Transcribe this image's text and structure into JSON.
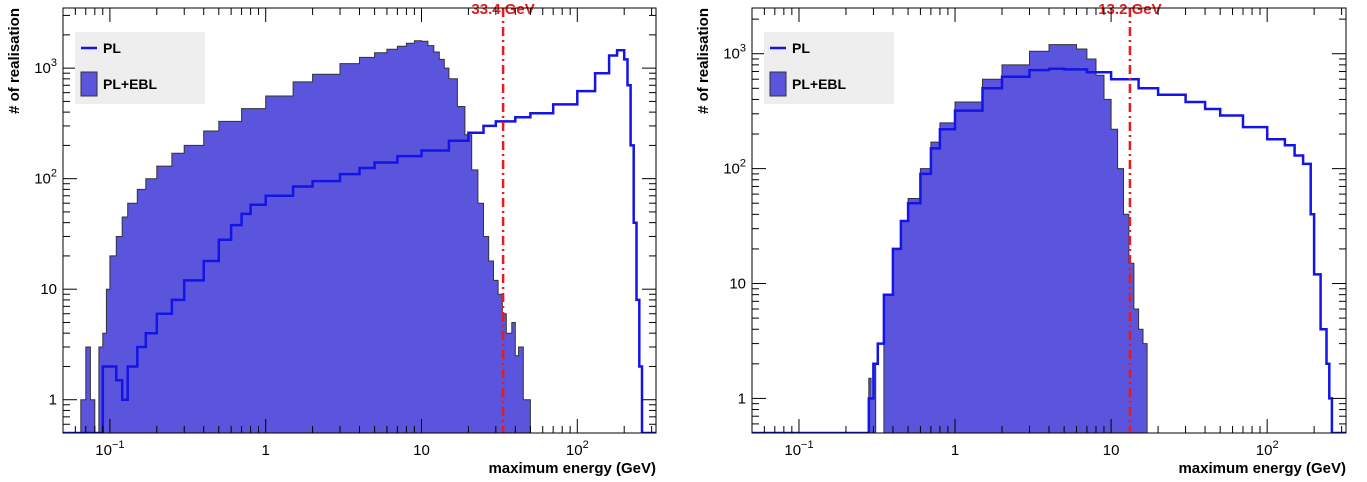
{
  "colors": {
    "pl_line": "#1414e6",
    "ebl_fill": "#5a55dc",
    "ebl_edge": "#333333",
    "cut_line": "#e61c1c",
    "legend_bg": "#eeeeee"
  },
  "chart_data": [
    {
      "type": "histogram",
      "title": "",
      "xlabel": "maximum energy (GeV)",
      "ylabel": "# of realisation",
      "xscale": "log",
      "yscale": "log",
      "xlim": [
        0.05,
        320
      ],
      "ylim": [
        0.5,
        3500
      ],
      "x_ticks": [
        {
          "value": 0.1,
          "label": "10",
          "exp": "−1"
        },
        {
          "value": 1,
          "label": "1",
          "exp": ""
        },
        {
          "value": 10,
          "label": "10",
          "exp": ""
        },
        {
          "value": 100,
          "label": "10",
          "exp": "2"
        }
      ],
      "y_ticks": [
        {
          "value": 1,
          "label": "1",
          "exp": ""
        },
        {
          "value": 10,
          "label": "10",
          "exp": ""
        },
        {
          "value": 100,
          "label": "10",
          "exp": "2"
        },
        {
          "value": 1000,
          "label": "10",
          "exp": "3"
        }
      ],
      "cut": {
        "value": 33.4,
        "label": "33.4 GeV"
      },
      "legend": {
        "position": "top-left",
        "entries": [
          {
            "label": "PL",
            "style": "line"
          },
          {
            "label": "PL+EBL",
            "style": "fill"
          }
        ]
      },
      "series": [
        {
          "name": "PL+EBL",
          "style": "fill",
          "points": [
            [
              0.05,
              0.5
            ],
            [
              0.06,
              0.5
            ],
            [
              0.065,
              1
            ],
            [
              0.07,
              3
            ],
            [
              0.075,
              1
            ],
            [
              0.08,
              0.5
            ],
            [
              0.085,
              3
            ],
            [
              0.09,
              4
            ],
            [
              0.095,
              10
            ],
            [
              0.1,
              20
            ],
            [
              0.11,
              30
            ],
            [
              0.12,
              45
            ],
            [
              0.13,
              60
            ],
            [
              0.15,
              80
            ],
            [
              0.17,
              100
            ],
            [
              0.2,
              130
            ],
            [
              0.25,
              170
            ],
            [
              0.3,
              200
            ],
            [
              0.4,
              270
            ],
            [
              0.5,
              330
            ],
            [
              0.7,
              430
            ],
            [
              1,
              560
            ],
            [
              1.5,
              750
            ],
            [
              2,
              880
            ],
            [
              3,
              1100
            ],
            [
              4,
              1250
            ],
            [
              5,
              1380
            ],
            [
              6,
              1480
            ],
            [
              7,
              1580
            ],
            [
              8,
              1680
            ],
            [
              9,
              1770
            ],
            [
              10,
              1750
            ],
            [
              11,
              1600
            ],
            [
              12,
              1400
            ],
            [
              13,
              1200
            ],
            [
              14,
              1000
            ],
            [
              15,
              800
            ],
            [
              17,
              450
            ],
            [
              19,
              250
            ],
            [
              21,
              120
            ],
            [
              23,
              60
            ],
            [
              25,
              30
            ],
            [
              27,
              18
            ],
            [
              29,
              12
            ],
            [
              31,
              9
            ],
            [
              33,
              6
            ],
            [
              35,
              4
            ],
            [
              38,
              5
            ],
            [
              40,
              2.5
            ],
            [
              42,
              3
            ],
            [
              45,
              1
            ],
            [
              50,
              0.5
            ],
            [
              320,
              0.5
            ]
          ]
        },
        {
          "name": "PL",
          "style": "line",
          "points": [
            [
              0.05,
              0.5
            ],
            [
              0.085,
              0.5
            ],
            [
              0.09,
              2
            ],
            [
              0.1,
              2
            ],
            [
              0.11,
              1.5
            ],
            [
              0.12,
              1
            ],
            [
              0.13,
              2
            ],
            [
              0.15,
              3
            ],
            [
              0.17,
              4
            ],
            [
              0.2,
              6
            ],
            [
              0.25,
              8
            ],
            [
              0.3,
              12
            ],
            [
              0.4,
              18
            ],
            [
              0.5,
              28
            ],
            [
              0.6,
              38
            ],
            [
              0.7,
              48
            ],
            [
              0.8,
              58
            ],
            [
              1,
              70
            ],
            [
              1.5,
              85
            ],
            [
              2,
              95
            ],
            [
              3,
              110
            ],
            [
              4,
              125
            ],
            [
              5,
              140
            ],
            [
              7,
              160
            ],
            [
              10,
              180
            ],
            [
              15,
              220
            ],
            [
              20,
              260
            ],
            [
              25,
              300
            ],
            [
              30,
              330
            ],
            [
              40,
              360
            ],
            [
              50,
              390
            ],
            [
              70,
              470
            ],
            [
              100,
              620
            ],
            [
              130,
              900
            ],
            [
              160,
              1300
            ],
            [
              180,
              1450
            ],
            [
              200,
              1200
            ],
            [
              210,
              700
            ],
            [
              220,
              200
            ],
            [
              230,
              40
            ],
            [
              240,
              8
            ],
            [
              250,
              2
            ],
            [
              260,
              0.5
            ],
            [
              320,
              0.5
            ]
          ]
        }
      ]
    },
    {
      "type": "histogram",
      "title": "",
      "xlabel": "maximum energy (GeV)",
      "ylabel": "# of realisation",
      "xscale": "log",
      "yscale": "log",
      "xlim": [
        0.05,
        320
      ],
      "ylim": [
        0.5,
        2500
      ],
      "x_ticks": [
        {
          "value": 0.1,
          "label": "10",
          "exp": "−1"
        },
        {
          "value": 1,
          "label": "1",
          "exp": ""
        },
        {
          "value": 10,
          "label": "10",
          "exp": ""
        },
        {
          "value": 100,
          "label": "10",
          "exp": "2"
        }
      ],
      "y_ticks": [
        {
          "value": 1,
          "label": "1",
          "exp": ""
        },
        {
          "value": 10,
          "label": "10",
          "exp": ""
        },
        {
          "value": 100,
          "label": "10",
          "exp": "2"
        },
        {
          "value": 1000,
          "label": "10",
          "exp": "3"
        }
      ],
      "cut": {
        "value": 13.2,
        "label": "13.2 GeV"
      },
      "legend": {
        "position": "top-left",
        "entries": [
          {
            "label": "PL",
            "style": "line"
          },
          {
            "label": "PL+EBL",
            "style": "fill"
          }
        ]
      },
      "series": [
        {
          "name": "PL+EBL",
          "style": "fill",
          "points": [
            [
              0.05,
              0.5
            ],
            [
              0.27,
              0.5
            ],
            [
              0.28,
              1.5
            ],
            [
              0.29,
              1
            ],
            [
              0.3,
              2
            ],
            [
              0.31,
              0.5
            ],
            [
              0.34,
              0.5
            ],
            [
              0.35,
              8
            ],
            [
              0.4,
              20
            ],
            [
              0.45,
              35
            ],
            [
              0.5,
              55
            ],
            [
              0.6,
              100
            ],
            [
              0.7,
              170
            ],
            [
              0.8,
              250
            ],
            [
              1,
              380
            ],
            [
              1.5,
              600
            ],
            [
              2,
              800
            ],
            [
              3,
              1050
            ],
            [
              4,
              1200
            ],
            [
              5,
              1200
            ],
            [
              6,
              1100
            ],
            [
              7,
              900
            ],
            [
              8,
              650
            ],
            [
              9,
              400
            ],
            [
              10,
              220
            ],
            [
              11,
              100
            ],
            [
              12,
              40
            ],
            [
              13,
              15
            ],
            [
              14,
              6
            ],
            [
              15,
              4
            ],
            [
              16,
              3
            ],
            [
              17,
              0.5
            ],
            [
              320,
              0.5
            ]
          ]
        },
        {
          "name": "PL",
          "style": "line",
          "points": [
            [
              0.05,
              0.5
            ],
            [
              0.27,
              0.5
            ],
            [
              0.28,
              1
            ],
            [
              0.3,
              2
            ],
            [
              0.32,
              3
            ],
            [
              0.35,
              8
            ],
            [
              0.4,
              20
            ],
            [
              0.45,
              35
            ],
            [
              0.5,
              50
            ],
            [
              0.6,
              90
            ],
            [
              0.7,
              150
            ],
            [
              0.8,
              220
            ],
            [
              1,
              320
            ],
            [
              1.5,
              500
            ],
            [
              2,
              630
            ],
            [
              3,
              720
            ],
            [
              4,
              740
            ],
            [
              5,
              730
            ],
            [
              7,
              690
            ],
            [
              10,
              600
            ],
            [
              15,
              500
            ],
            [
              20,
              440
            ],
            [
              30,
              380
            ],
            [
              40,
              330
            ],
            [
              50,
              290
            ],
            [
              70,
              230
            ],
            [
              100,
              180
            ],
            [
              130,
              160
            ],
            [
              150,
              130
            ],
            [
              170,
              110
            ],
            [
              190,
              40
            ],
            [
              200,
              12
            ],
            [
              220,
              4
            ],
            [
              240,
              2
            ],
            [
              250,
              1
            ],
            [
              260,
              0.5
            ],
            [
              320,
              0.5
            ]
          ]
        }
      ]
    }
  ]
}
